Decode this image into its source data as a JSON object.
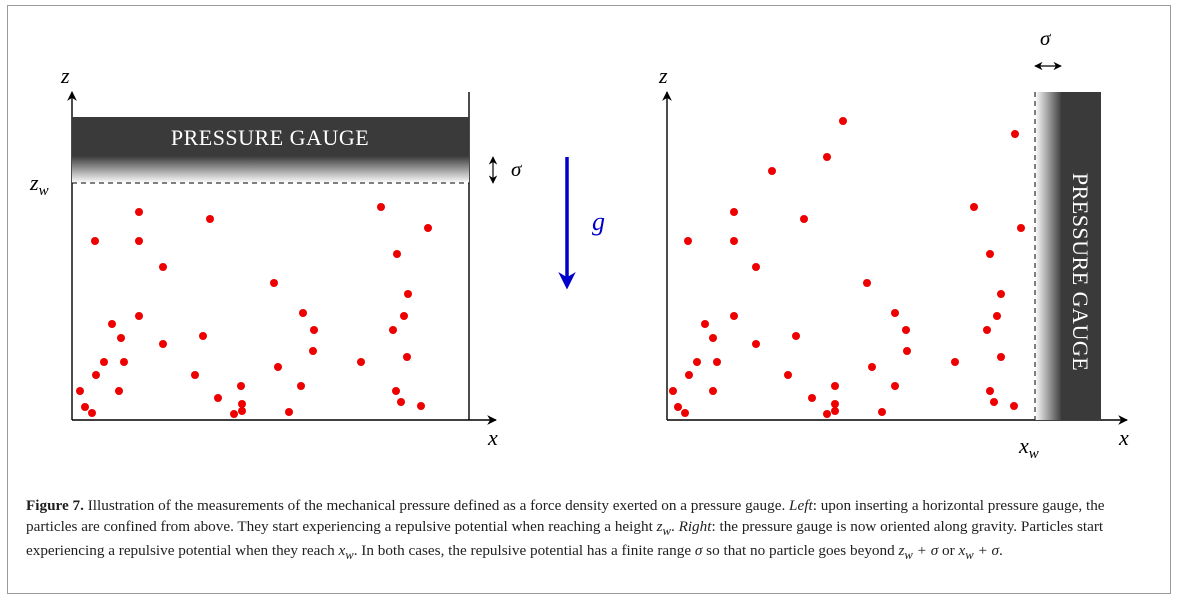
{
  "figure": {
    "left_panel": {
      "z_axis_label": "z",
      "x_axis_label": "x",
      "wall_label": "z",
      "wall_label_sub": "w",
      "gauge_label": "PRESSURE GAUGE",
      "sigma_label": "σ"
    },
    "gravity_label": "g",
    "right_panel": {
      "z_axis_label": "z",
      "x_axis_label": "x",
      "wall_label": "x",
      "wall_label_sub": "w",
      "gauge_label": "PRESSURE GAUGE",
      "sigma_label": "σ"
    },
    "colors": {
      "particle": "#ee0000",
      "gauge": "#3a3a3a",
      "gravity_arrow": "#0000cc"
    }
  },
  "caption": {
    "figure_number": "Figure 7.",
    "text_1": " Illustration of the measurements of the mechanical pressure defined as a force density exerted on a pressure gauge. ",
    "left_word": "Left",
    "text_2": ": upon inserting a horizontal pressure gauge, the particles are confined from above. They start experiencing a repulsive potential when reaching a height ",
    "zw_main": "z",
    "zw_sub": "w",
    "text_3": ". ",
    "right_word": "Right",
    "text_4": ": the pressure gauge is now oriented along gravity. Particles start experiencing a repulsive potential when they reach ",
    "xw_main": "x",
    "xw_sub": "w",
    "text_5": ". In both cases, the repulsive potential has a finite range ",
    "sigma": "σ",
    "text_6": " so that no particle goes beyond ",
    "zw2_main": "z",
    "zw2_sub": "w",
    "plus_sigma_1": " + σ",
    "text_or": " or ",
    "xw2_main": "x",
    "xw2_sub": "w",
    "plus_sigma_2": " + σ",
    "text_end": "."
  }
}
